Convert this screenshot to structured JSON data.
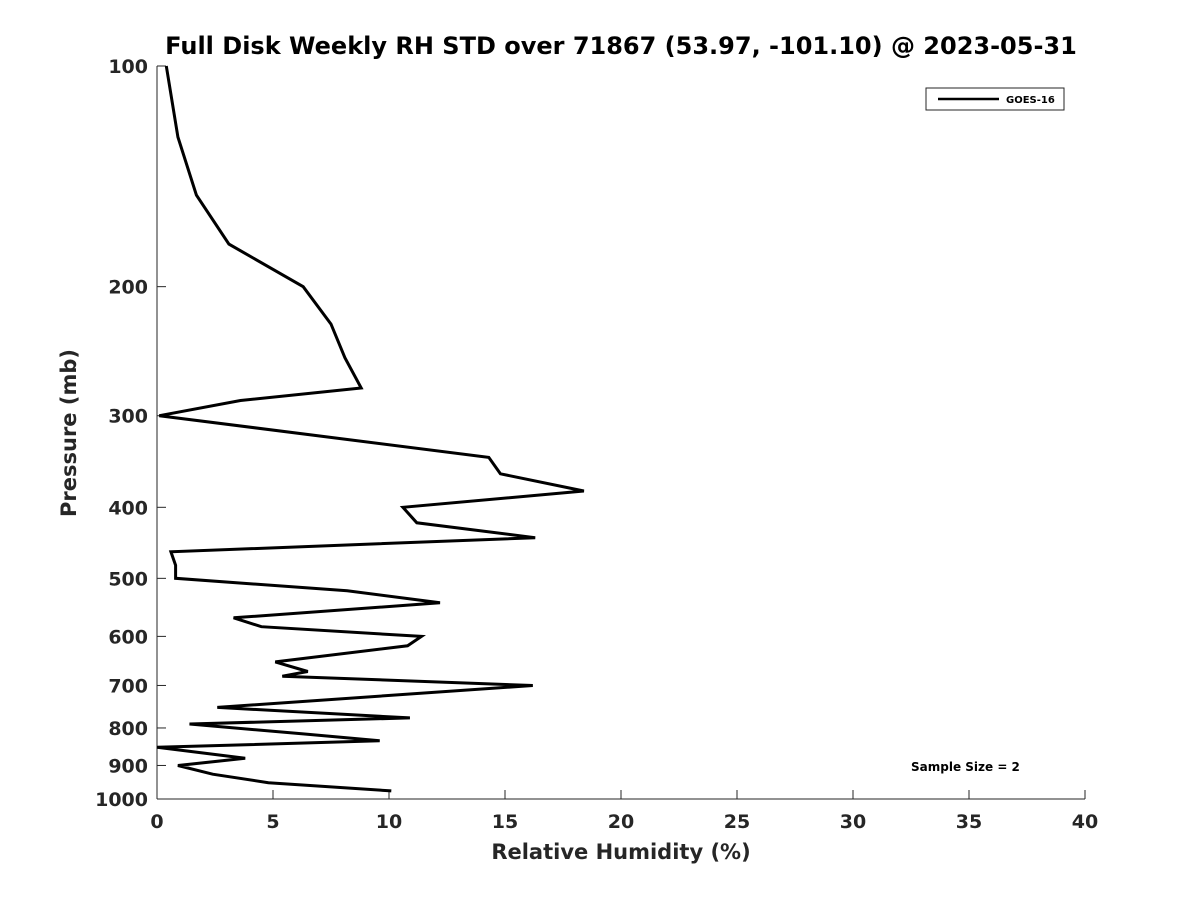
{
  "chart_data": {
    "type": "line",
    "title": "Full Disk Weekly RH STD over 71867 (53.97, -101.10) @ 2023-05-31",
    "xlabel": "Relative Humidity (%)",
    "ylabel": "Pressure (mb)",
    "xlim": [
      0,
      40
    ],
    "ylim": [
      100,
      1000
    ],
    "y_scale": "log",
    "y_reversed": true,
    "x_ticks": [
      0,
      5,
      10,
      15,
      20,
      25,
      30,
      35,
      40
    ],
    "y_ticks": [
      100,
      200,
      300,
      400,
      500,
      600,
      700,
      800,
      900,
      1000
    ],
    "grid": false,
    "legend_position": "top-right",
    "annotation": "Sample Size = 2",
    "series": [
      {
        "name": "GOES-16",
        "color": "#000000",
        "x": [
          0.4,
          0.9,
          1.7,
          3.1,
          6.3,
          7.5,
          8.1,
          8.8,
          3.6,
          0.1,
          14.3,
          14.8,
          18.4,
          10.6,
          11.2,
          16.3,
          0.6,
          0.8,
          0.8,
          8.2,
          12.2,
          3.3,
          4.5,
          11.4,
          10.8,
          5.1,
          6.5,
          5.4,
          16.2,
          2.6,
          10.9,
          1.4,
          6.3,
          9.6,
          0.0,
          3.8,
          0.9,
          2.4,
          4.8,
          10.1
        ],
        "y": [
          100,
          125,
          150,
          175,
          200,
          225,
          250,
          275,
          286,
          300,
          342,
          360,
          380,
          400,
          420,
          440,
          460,
          480,
          500,
          520,
          540,
          566,
          582,
          600,
          618,
          650,
          670,
          680,
          700,
          750,
          775,
          790,
          815,
          833,
          850,
          880,
          900,
          925,
          950,
          975
        ]
      }
    ]
  }
}
